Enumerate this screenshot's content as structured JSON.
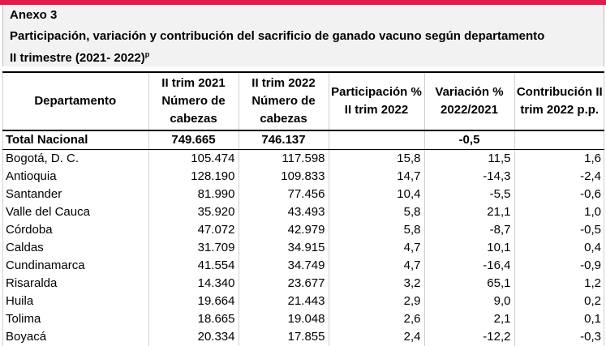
{
  "header": {
    "title": "Anexo 3",
    "subtitle": "Participación, variación y contribución del sacrificio de ganado vacuno según departamento",
    "period": "II trimestre (2021- 2022)",
    "period_sup": "p"
  },
  "table": {
    "columns": [
      "Departamento",
      "II trim 2021 Número de cabezas",
      "II trim 2022 Número de cabezas",
      "Participación % II trim 2022",
      "Variación % 2022/2021",
      "Contribución II trim 2022 p.p."
    ],
    "total": {
      "label": "Total Nacional",
      "y2021": "749.665",
      "y2022": "746.137",
      "part": "",
      "var": "-0,5",
      "contrib": ""
    },
    "rows": [
      {
        "label": "Bogotá, D. C.",
        "y2021": "105.474",
        "y2022": "117.598",
        "part": "15,8",
        "var": "11,5",
        "contrib": "1,6"
      },
      {
        "label": "Antioquia",
        "y2021": "128.190",
        "y2022": "109.833",
        "part": "14,7",
        "var": "-14,3",
        "contrib": "-2,4"
      },
      {
        "label": "Santander",
        "y2021": "81.990",
        "y2022": "77.456",
        "part": "10,4",
        "var": "-5,5",
        "contrib": "-0,6"
      },
      {
        "label": "Valle del Cauca",
        "y2021": "35.920",
        "y2022": "43.493",
        "part": "5,8",
        "var": "21,1",
        "contrib": "1,0"
      },
      {
        "label": "Córdoba",
        "y2021": "47.072",
        "y2022": "42.979",
        "part": "5,8",
        "var": "-8,7",
        "contrib": "-0,5"
      },
      {
        "label": "Caldas",
        "y2021": "31.709",
        "y2022": "34.915",
        "part": "4,7",
        "var": "10,1",
        "contrib": "0,4"
      },
      {
        "label": "Cundinamarca",
        "y2021": "41.554",
        "y2022": "34.749",
        "part": "4,7",
        "var": "-16,4",
        "contrib": "-0,9"
      },
      {
        "label": "Risaralda",
        "y2021": "14.340",
        "y2022": "23.677",
        "part": "3,2",
        "var": "65,1",
        "contrib": "1,2"
      },
      {
        "label": "Huila",
        "y2021": "19.664",
        "y2022": "21.443",
        "part": "2,9",
        "var": "9,0",
        "contrib": "0,2"
      },
      {
        "label": "Tolima",
        "y2021": "18.665",
        "y2022": "19.048",
        "part": "2,6",
        "var": "2,1",
        "contrib": "0,1"
      },
      {
        "label": "Boyacá",
        "y2021": "20.334",
        "y2022": "17.855",
        "part": "2,4",
        "var": "-12,2",
        "contrib": "-0,3"
      }
    ]
  }
}
